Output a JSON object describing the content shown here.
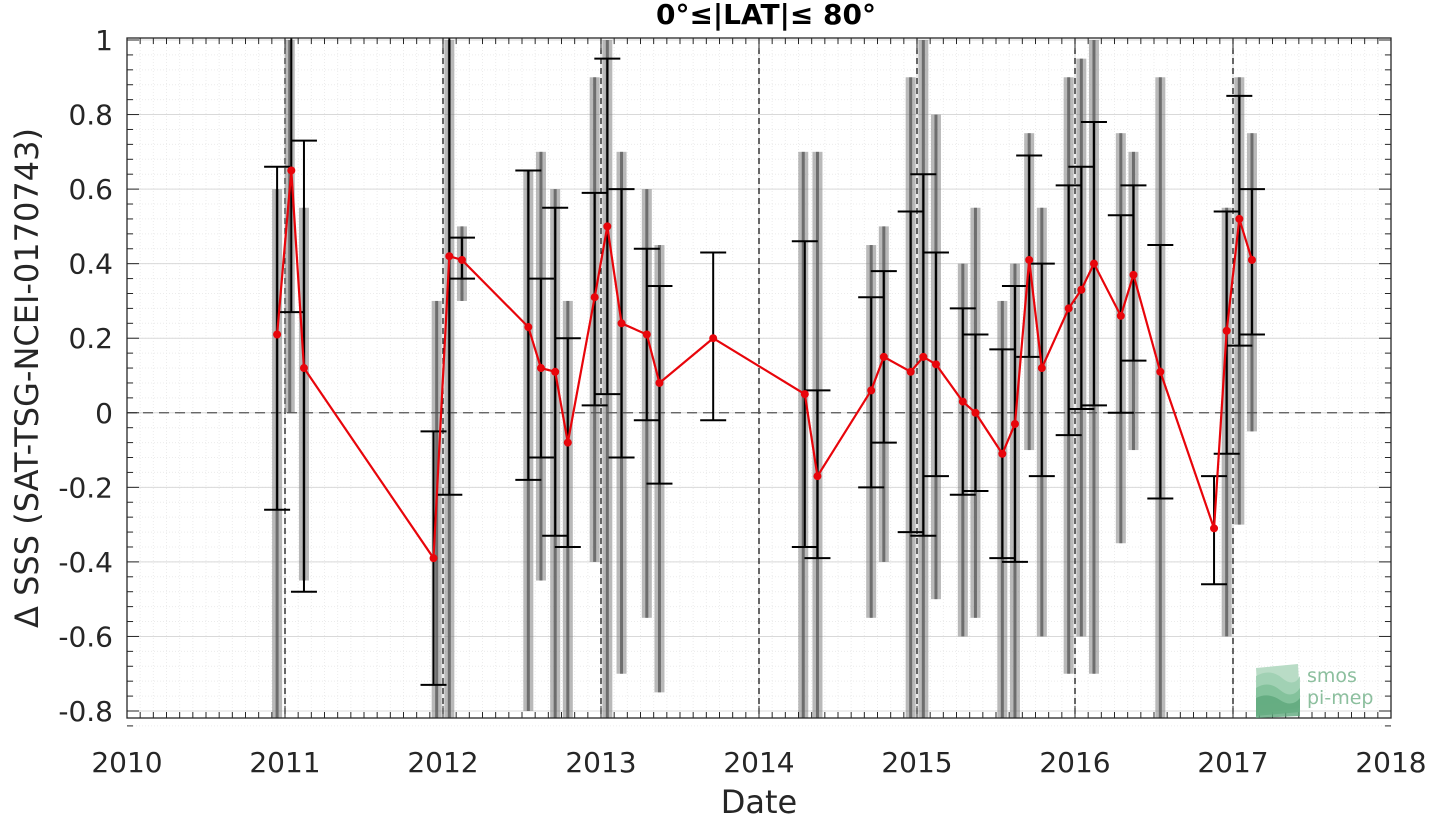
{
  "chart_data": {
    "type": "scatter",
    "title": "0°≤|LAT|≤ 80°",
    "xlabel": "Date",
    "ylabel": "Δ SSS (SAT-TSG-NCEI-0170743)",
    "xlim": [
      2010,
      2018
    ],
    "ylim": [
      -0.85,
      1.0
    ],
    "x_ticks": [
      "2010",
      "2011",
      "2012",
      "2013",
      "2014",
      "2015",
      "2016",
      "2017",
      "2018"
    ],
    "y_ticks": [
      "1",
      "0.8",
      "0.6",
      "0.4",
      "0.2",
      "0",
      "-0.2",
      "-0.4",
      "-0.6",
      "-0.8"
    ],
    "grid": "on",
    "reference_line_y": 0,
    "colors": {
      "mean_series": "#e8050b",
      "error_bars": "#000000",
      "raw_points": "#808080",
      "grid": "#d9d9d9"
    },
    "series": [
      {
        "kind": "monthly-mean-with-errorbars",
        "x": [
          2010.95,
          2011.04,
          2011.12,
          2011.94,
          2012.04,
          2012.12,
          2012.54,
          2012.62,
          2012.71,
          2012.79,
          2012.96,
          2013.04,
          2013.13,
          2013.29,
          2013.37,
          2013.71,
          2014.29,
          2014.37,
          2014.71,
          2014.79,
          2014.96,
          2015.04,
          2015.12,
          2015.29,
          2015.37,
          2015.54,
          2015.62,
          2015.71,
          2015.79,
          2015.96,
          2016.04,
          2016.12,
          2016.29,
          2016.37,
          2016.54,
          2016.88,
          2016.96,
          2017.04,
          2017.12
        ],
        "y": [
          0.21,
          0.65,
          0.12,
          -0.39,
          0.42,
          0.41,
          0.23,
          0.12,
          0.11,
          -0.08,
          0.31,
          0.5,
          0.24,
          0.21,
          0.08,
          0.2,
          0.05,
          -0.17,
          0.06,
          0.15,
          0.11,
          0.15,
          0.13,
          0.03,
          0.0,
          -0.11,
          -0.03,
          0.41,
          0.12,
          0.28,
          0.33,
          0.4,
          0.26,
          0.37,
          0.11,
          -0.31,
          0.22,
          0.52,
          0.41
        ],
        "y_low": [
          -0.26,
          0.27,
          -0.48,
          -0.73,
          -0.22,
          0.36,
          -0.18,
          -0.12,
          -0.33,
          -0.36,
          0.02,
          0.05,
          -0.12,
          -0.02,
          -0.19,
          -0.02,
          -0.36,
          -0.39,
          -0.2,
          -0.08,
          -0.32,
          -0.33,
          -0.17,
          -0.22,
          -0.21,
          -0.39,
          -0.4,
          0.15,
          -0.17,
          -0.06,
          0.01,
          0.02,
          0.0,
          0.14,
          -0.23,
          -0.46,
          -0.11,
          0.18,
          0.21
        ],
        "y_high": [
          0.66,
          1.02,
          0.73,
          -0.05,
          1.02,
          0.47,
          0.65,
          0.36,
          0.55,
          0.2,
          0.59,
          0.95,
          0.6,
          0.44,
          0.34,
          0.43,
          0.46,
          0.06,
          0.31,
          0.38,
          0.54,
          0.64,
          0.43,
          0.28,
          0.21,
          0.17,
          0.34,
          0.69,
          0.4,
          0.61,
          0.66,
          0.78,
          0.53,
          0.61,
          0.45,
          -0.17,
          0.54,
          0.85,
          0.6
        ]
      },
      {
        "kind": "raw-difference-point-clouds",
        "x": [
          2010.95,
          2011.03,
          2011.12,
          2011.96,
          2012.04,
          2012.12,
          2012.54,
          2012.62,
          2012.71,
          2012.79,
          2012.96,
          2013.04,
          2013.13,
          2013.29,
          2013.37,
          2014.28,
          2014.37,
          2014.71,
          2014.79,
          2014.96,
          2015.04,
          2015.12,
          2015.29,
          2015.37,
          2015.54,
          2015.62,
          2015.71,
          2015.79,
          2015.96,
          2016.04,
          2016.12,
          2016.29,
          2016.37,
          2016.54,
          2016.96,
          2017.04,
          2017.12
        ],
        "low": [
          -0.84,
          0.0,
          -0.45,
          -0.84,
          -0.84,
          0.3,
          -0.8,
          -0.45,
          -0.84,
          -0.84,
          -0.4,
          -0.84,
          -0.7,
          -0.55,
          -0.75,
          -0.84,
          -0.84,
          -0.55,
          -0.4,
          -0.84,
          -0.84,
          -0.5,
          -0.6,
          -0.55,
          -0.84,
          -0.84,
          -0.1,
          -0.6,
          -0.7,
          -0.6,
          -0.7,
          -0.35,
          -0.1,
          -0.84,
          -0.6,
          -0.3,
          -0.05
        ],
        "high": [
          0.6,
          1.0,
          0.55,
          0.3,
          1.0,
          0.5,
          0.65,
          0.7,
          0.6,
          0.3,
          0.9,
          1.0,
          0.7,
          0.6,
          0.45,
          0.7,
          0.7,
          0.45,
          0.5,
          0.9,
          1.0,
          0.8,
          0.4,
          0.55,
          0.3,
          0.4,
          0.75,
          0.55,
          0.9,
          0.95,
          1.0,
          0.75,
          0.7,
          0.9,
          0.55,
          0.9,
          0.75
        ]
      }
    ],
    "year_markers": [
      2011,
      2012,
      2013,
      2014,
      2015,
      2016,
      2017
    ]
  },
  "logo": {
    "line1": "smos",
    "line2": "pi-mep",
    "icon": "wave-stack-icon"
  }
}
